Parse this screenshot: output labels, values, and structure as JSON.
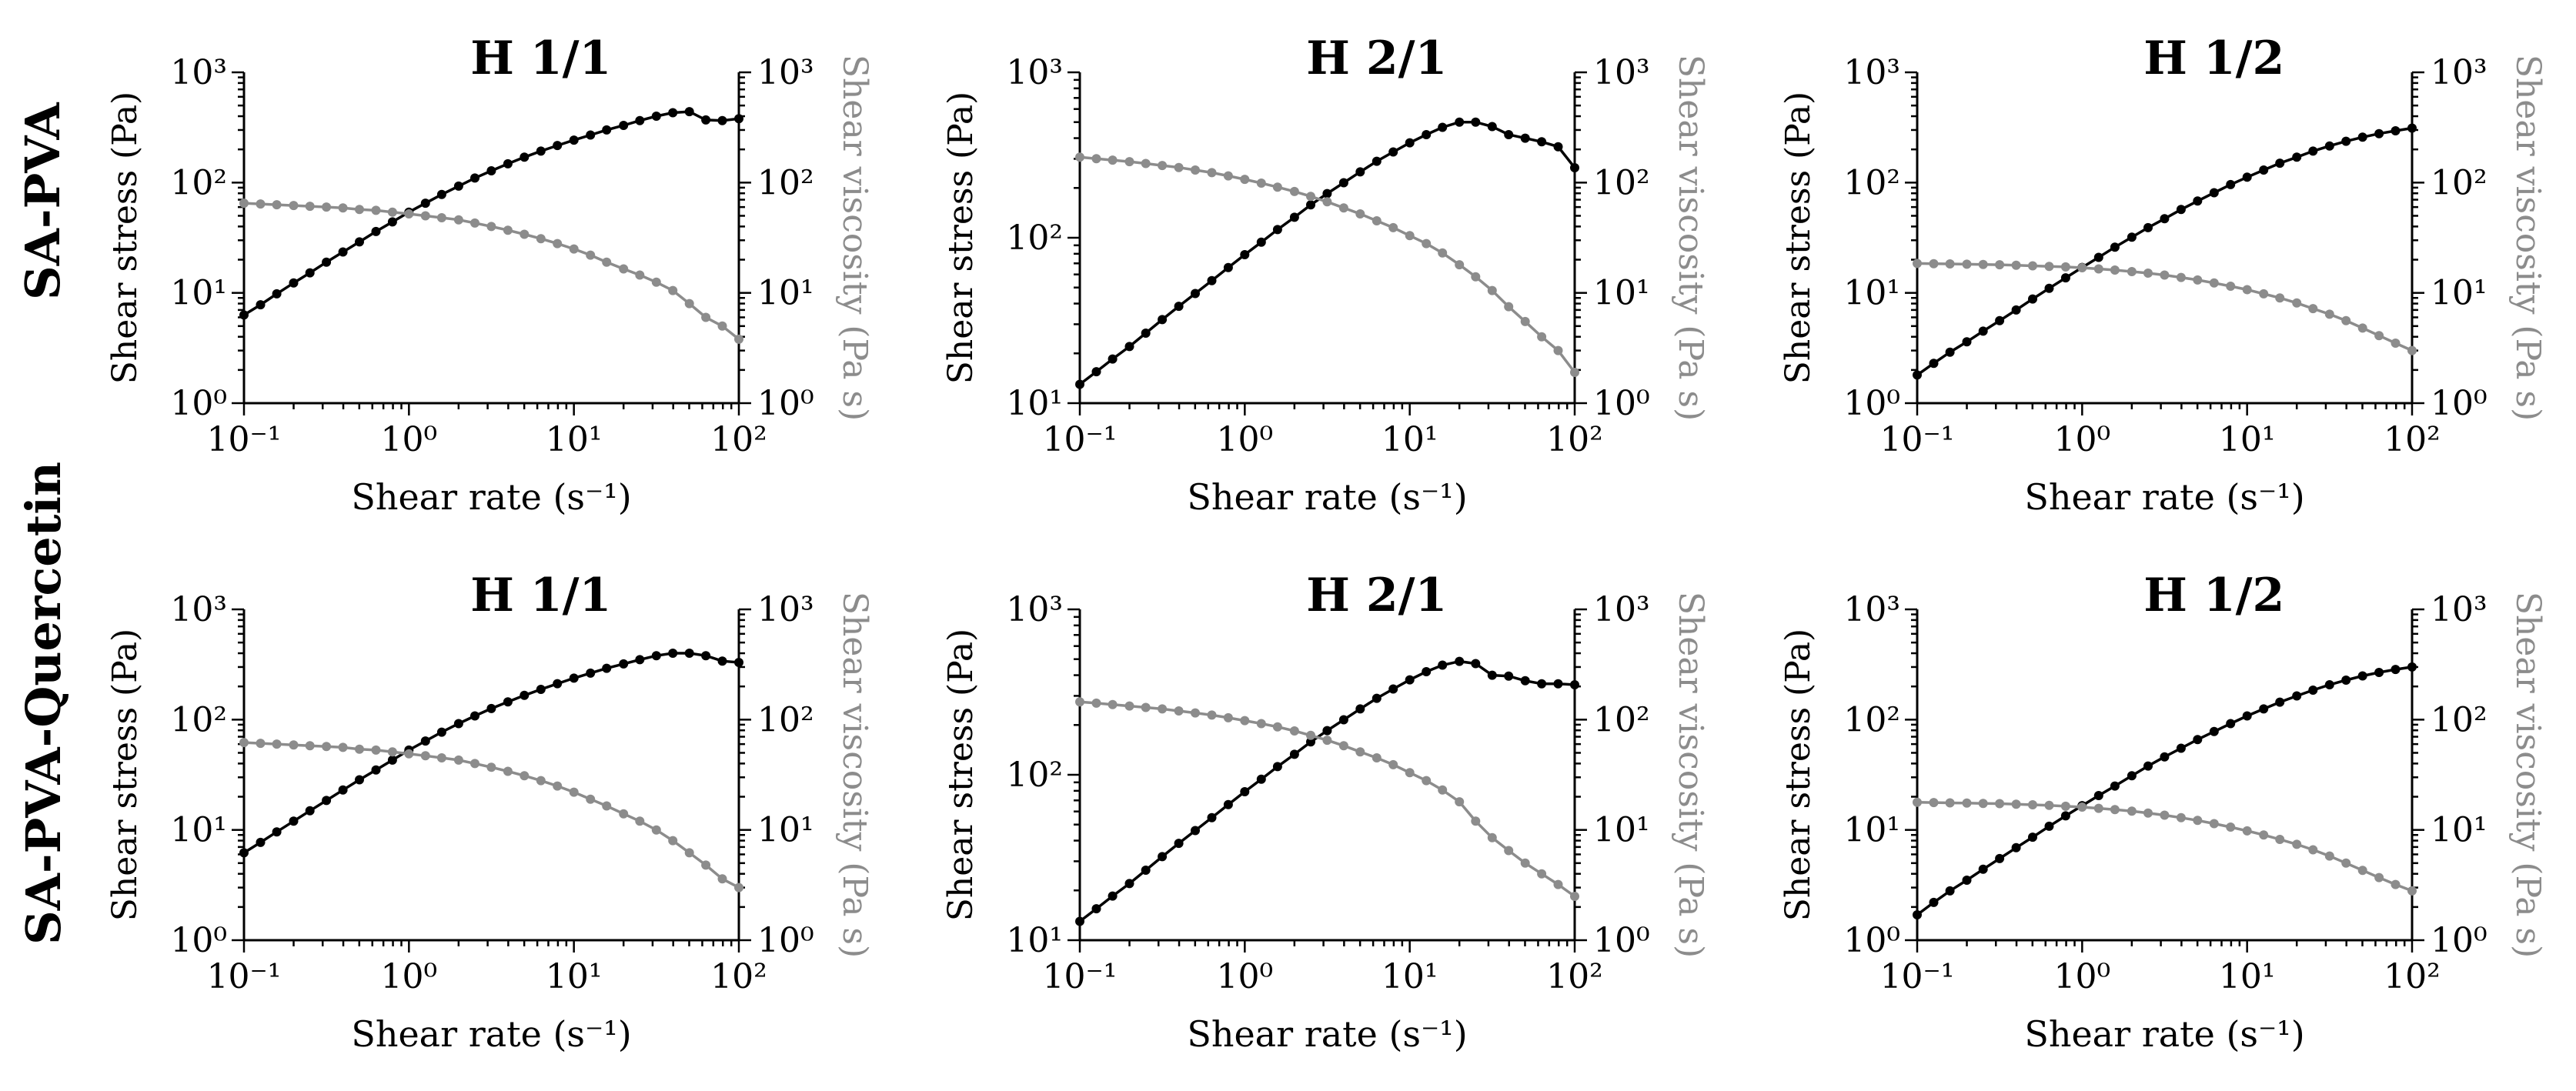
{
  "figure": {
    "row_labels": [
      "SA-PVA",
      "SA-PVA-Quercetin"
    ]
  },
  "colors": {
    "stress": "#000000",
    "viscosity": "#8c8c8c",
    "axis": "#000000"
  },
  "chart_data": [
    {
      "type": "line",
      "row": "SA-PVA",
      "title": "H 1/1",
      "xlabel": "Shear rate (s⁻¹)",
      "ylabel": "Shear stress (Pa)",
      "y2label": "Shear viscosity (Pa s)",
      "xscale": "log",
      "xlim": [
        0.1,
        100
      ],
      "xticks": [
        "10⁻¹",
        "10⁰",
        "10¹",
        "10²"
      ],
      "ylim": [
        1,
        1000
      ],
      "yticks": [
        "10⁰",
        "10¹",
        "10²",
        "10³"
      ],
      "y2lim": [
        1,
        1000
      ],
      "y2ticks": [
        "10⁰",
        "10¹",
        "10²",
        "10³"
      ],
      "series": [
        {
          "name": "Shear stress",
          "axis": "left",
          "color": "#000000",
          "x": [
            0.1,
            0.126,
            0.158,
            0.2,
            0.251,
            0.316,
            0.398,
            0.501,
            0.631,
            0.794,
            1.0,
            1.26,
            1.58,
            2.0,
            2.51,
            3.16,
            3.98,
            5.01,
            6.31,
            7.94,
            10.0,
            12.6,
            15.8,
            20.0,
            25.1,
            31.6,
            39.8,
            50.1,
            63.1,
            79.4,
            100.0
          ],
          "y": [
            6.3,
            7.8,
            9.8,
            12.3,
            15.2,
            19,
            23.5,
            29,
            36,
            44,
            54,
            65,
            78,
            93,
            110,
            128,
            148,
            170,
            193,
            217,
            243,
            270,
            300,
            330,
            365,
            400,
            430,
            440,
            370,
            365,
            380
          ]
        },
        {
          "name": "Shear viscosity",
          "axis": "right",
          "color": "#8c8c8c",
          "x": [
            0.1,
            0.126,
            0.158,
            0.2,
            0.251,
            0.316,
            0.398,
            0.501,
            0.631,
            0.794,
            1.0,
            1.26,
            1.58,
            2.0,
            2.51,
            3.16,
            3.98,
            5.01,
            6.31,
            7.94,
            10.0,
            12.6,
            15.8,
            20.0,
            25.1,
            31.6,
            39.8,
            50.1,
            63.1,
            79.4,
            100.0
          ],
          "y": [
            65,
            64,
            63,
            62,
            61,
            60,
            59,
            57,
            56,
            54,
            52,
            50,
            48,
            46,
            43,
            40,
            37,
            34,
            31,
            28,
            25,
            22,
            19,
            16.5,
            14.5,
            12.5,
            10.5,
            8,
            6,
            5,
            3.8
          ]
        }
      ]
    },
    {
      "type": "line",
      "row": "SA-PVA",
      "title": "H 2/1",
      "xlabel": "Shear rate (s⁻¹)",
      "ylabel": "Shear stress (Pa)",
      "y2label": "Shear viscosity (Pa s)",
      "xscale": "log",
      "xlim": [
        0.1,
        100
      ],
      "xticks": [
        "10⁻¹",
        "10⁰",
        "10¹",
        "10²"
      ],
      "ylim": [
        10,
        1000
      ],
      "yticks": [
        "10¹",
        "10²",
        "10³"
      ],
      "y2lim": [
        1,
        1000
      ],
      "y2ticks": [
        "10⁰",
        "10¹",
        "10²",
        "10³"
      ],
      "series": [
        {
          "name": "Shear stress",
          "axis": "left",
          "color": "#000000",
          "x": [
            0.1,
            0.126,
            0.158,
            0.2,
            0.251,
            0.316,
            0.398,
            0.501,
            0.631,
            0.794,
            1.0,
            1.26,
            1.58,
            2.0,
            2.51,
            3.16,
            3.98,
            5.01,
            6.31,
            7.94,
            10.0,
            12.6,
            15.8,
            20.0,
            25.1,
            31.6,
            39.8,
            50.1,
            63.1,
            79.4,
            100.0
          ],
          "y": [
            13,
            15.5,
            18.5,
            22,
            26.5,
            32,
            38.5,
            46,
            55,
            66,
            79,
            94,
            112,
            133,
            158,
            185,
            215,
            250,
            290,
            330,
            375,
            420,
            465,
            500,
            500,
            470,
            420,
            400,
            380,
            355,
            265
          ]
        },
        {
          "name": "Shear viscosity",
          "axis": "right",
          "color": "#8c8c8c",
          "x": [
            0.1,
            0.126,
            0.158,
            0.2,
            0.251,
            0.316,
            0.398,
            0.501,
            0.631,
            0.794,
            1.0,
            1.26,
            1.58,
            2.0,
            2.51,
            3.16,
            3.98,
            5.01,
            6.31,
            7.94,
            10.0,
            12.6,
            15.8,
            20.0,
            25.1,
            31.6,
            39.8,
            50.1,
            63.1,
            79.4,
            100.0
          ],
          "y": [
            170,
            165,
            160,
            155,
            149,
            143,
            137,
            130,
            123,
            115,
            107,
            99,
            91,
            83,
            75,
            67,
            59,
            52,
            45,
            39,
            33,
            28,
            23,
            18,
            14,
            10.5,
            7.5,
            5.5,
            4,
            3,
            1.9
          ]
        }
      ]
    },
    {
      "type": "line",
      "row": "SA-PVA",
      "title": "H 1/2",
      "xlabel": "Shear rate (s⁻¹)",
      "ylabel": "Shear stress (Pa)",
      "y2label": "Shear viscosity (Pa s)",
      "xscale": "log",
      "xlim": [
        0.1,
        100
      ],
      "xticks": [
        "10⁻¹",
        "10⁰",
        "10¹",
        "10²"
      ],
      "ylim": [
        1,
        1000
      ],
      "yticks": [
        "10⁰",
        "10¹",
        "10²",
        "10³"
      ],
      "y2lim": [
        1,
        1000
      ],
      "y2ticks": [
        "10⁰",
        "10¹",
        "10²",
        "10³"
      ],
      "series": [
        {
          "name": "Shear stress",
          "axis": "left",
          "color": "#000000",
          "x": [
            0.1,
            0.126,
            0.158,
            0.2,
            0.251,
            0.316,
            0.398,
            0.501,
            0.631,
            0.794,
            1.0,
            1.26,
            1.58,
            2.0,
            2.51,
            3.16,
            3.98,
            5.01,
            6.31,
            7.94,
            10.0,
            12.6,
            15.8,
            20.0,
            25.1,
            31.6,
            39.8,
            50.1,
            63.1,
            79.4,
            100.0
          ],
          "y": [
            1.8,
            2.3,
            2.9,
            3.6,
            4.5,
            5.6,
            7,
            8.8,
            11,
            13.7,
            17,
            21,
            26,
            32,
            39,
            47,
            57,
            68,
            81,
            96,
            112,
            130,
            150,
            170,
            193,
            215,
            237,
            258,
            278,
            295,
            312
          ]
        },
        {
          "name": "Shear viscosity",
          "axis": "right",
          "color": "#8c8c8c",
          "x": [
            0.1,
            0.126,
            0.158,
            0.2,
            0.251,
            0.316,
            0.398,
            0.501,
            0.631,
            0.794,
            1.0,
            1.26,
            1.58,
            2.0,
            2.51,
            3.16,
            3.98,
            5.01,
            6.31,
            7.94,
            10.0,
            12.6,
            15.8,
            20.0,
            25.1,
            31.6,
            39.8,
            50.1,
            63.1,
            79.4,
            100.0
          ],
          "y": [
            18.5,
            18.4,
            18.3,
            18.2,
            18.1,
            18,
            17.8,
            17.6,
            17.4,
            17.2,
            16.9,
            16.5,
            16.1,
            15.6,
            15.1,
            14.5,
            13.8,
            13.1,
            12.3,
            11.5,
            10.7,
            9.8,
            9,
            8.1,
            7.2,
            6.4,
            5.6,
            4.8,
            4.1,
            3.5,
            3
          ]
        }
      ]
    },
    {
      "type": "line",
      "row": "SA-PVA-Quercetin",
      "title": "H 1/1",
      "xlabel": "Shear rate (s⁻¹)",
      "ylabel": "Shear stress (Pa)",
      "y2label": "Shear viscosity (Pa s)",
      "xscale": "log",
      "xlim": [
        0.1,
        100
      ],
      "xticks": [
        "10⁻¹",
        "10⁰",
        "10¹",
        "10²"
      ],
      "ylim": [
        1,
        1000
      ],
      "yticks": [
        "10⁰",
        "10¹",
        "10²",
        "10³"
      ],
      "y2lim": [
        1,
        1000
      ],
      "y2ticks": [
        "10⁰",
        "10¹",
        "10²",
        "10³"
      ],
      "series": [
        {
          "name": "Shear stress",
          "axis": "left",
          "color": "#000000",
          "x": [
            0.1,
            0.126,
            0.158,
            0.2,
            0.251,
            0.316,
            0.398,
            0.501,
            0.631,
            0.794,
            1.0,
            1.26,
            1.58,
            2.0,
            2.51,
            3.16,
            3.98,
            5.01,
            6.31,
            7.94,
            10.0,
            12.6,
            15.8,
            20.0,
            25.1,
            31.6,
            39.8,
            50.1,
            63.1,
            79.4,
            100.0
          ],
          "y": [
            6.2,
            7.7,
            9.6,
            12,
            14.9,
            18.5,
            23,
            28.5,
            35,
            43,
            53,
            64,
            77,
            92,
            108,
            126,
            145,
            166,
            188,
            212,
            238,
            264,
            292,
            320,
            350,
            380,
            400,
            400,
            380,
            340,
            330
          ]
        },
        {
          "name": "Shear viscosity",
          "axis": "right",
          "color": "#8c8c8c",
          "x": [
            0.1,
            0.126,
            0.158,
            0.2,
            0.251,
            0.316,
            0.398,
            0.501,
            0.631,
            0.794,
            1.0,
            1.26,
            1.58,
            2.0,
            2.51,
            3.16,
            3.98,
            5.01,
            6.31,
            7.94,
            10.0,
            12.6,
            15.8,
            20.0,
            25.1,
            31.6,
            39.8,
            50.1,
            63.1,
            79.4,
            100.0
          ],
          "y": [
            62,
            61,
            60,
            59,
            58,
            57,
            56,
            54,
            53,
            51,
            49,
            47,
            45,
            43,
            40,
            37,
            34,
            31,
            28,
            25,
            22,
            19,
            16.5,
            14,
            12,
            10,
            8,
            6.2,
            4.8,
            3.6,
            3
          ]
        }
      ]
    },
    {
      "type": "line",
      "row": "SA-PVA-Quercetin",
      "title": "H 2/1",
      "xlabel": "Shear rate (s⁻¹)",
      "ylabel": "Shear stress (Pa)",
      "y2label": "Shear viscosity (Pa s)",
      "xscale": "log",
      "xlim": [
        0.1,
        100
      ],
      "xticks": [
        "10⁻¹",
        "10⁰",
        "10¹",
        "10²"
      ],
      "ylim": [
        10,
        1000
      ],
      "yticks": [
        "10¹",
        "10²",
        "10³"
      ],
      "y2lim": [
        1,
        1000
      ],
      "y2ticks": [
        "10⁰",
        "10¹",
        "10²",
        "10³"
      ],
      "series": [
        {
          "name": "Shear stress",
          "axis": "left",
          "color": "#000000",
          "x": [
            0.1,
            0.126,
            0.158,
            0.2,
            0.251,
            0.316,
            0.398,
            0.501,
            0.631,
            0.794,
            1.0,
            1.26,
            1.58,
            2.0,
            2.51,
            3.16,
            3.98,
            5.01,
            6.31,
            7.94,
            10.0,
            12.6,
            15.8,
            20.0,
            25.1,
            31.6,
            39.8,
            50.1,
            63.1,
            79.4,
            100.0
          ],
          "y": [
            13,
            15.5,
            18.5,
            22,
            26.5,
            32,
            38.5,
            46,
            55,
            66,
            79,
            94,
            112,
            133,
            158,
            185,
            215,
            250,
            290,
            330,
            375,
            420,
            460,
            485,
            470,
            400,
            395,
            370,
            355,
            355,
            350
          ]
        },
        {
          "name": "Shear viscosity",
          "axis": "right",
          "color": "#8c8c8c",
          "x": [
            0.1,
            0.126,
            0.158,
            0.2,
            0.251,
            0.316,
            0.398,
            0.501,
            0.631,
            0.794,
            1.0,
            1.26,
            1.58,
            2.0,
            2.51,
            3.16,
            3.98,
            5.01,
            6.31,
            7.94,
            10.0,
            12.6,
            15.8,
            20.0,
            25.1,
            31.6,
            39.8,
            50.1,
            63.1,
            79.4,
            100.0
          ],
          "y": [
            145,
            141,
            137,
            133,
            129,
            125,
            120,
            115,
            110,
            104,
            98,
            92,
            86,
            79,
            72,
            65,
            58,
            51,
            45,
            39,
            33,
            28,
            23,
            18,
            12,
            8.5,
            6.5,
            5,
            4,
            3.2,
            2.5
          ]
        }
      ]
    },
    {
      "type": "line",
      "row": "SA-PVA-Quercetin",
      "title": "H 1/2",
      "xlabel": "Shear rate (s⁻¹)",
      "ylabel": "Shear stress (Pa)",
      "y2label": "Shear viscosity (Pa s)",
      "xscale": "log",
      "xlim": [
        0.1,
        100
      ],
      "xticks": [
        "10⁻¹",
        "10⁰",
        "10¹",
        "10²"
      ],
      "ylim": [
        1,
        1000
      ],
      "yticks": [
        "10⁰",
        "10¹",
        "10²",
        "10³"
      ],
      "y2lim": [
        1,
        1000
      ],
      "y2ticks": [
        "10⁰",
        "10¹",
        "10²",
        "10³"
      ],
      "series": [
        {
          "name": "Shear stress",
          "axis": "left",
          "color": "#000000",
          "x": [
            0.1,
            0.126,
            0.158,
            0.2,
            0.251,
            0.316,
            0.398,
            0.501,
            0.631,
            0.794,
            1.0,
            1.26,
            1.58,
            2.0,
            2.51,
            3.16,
            3.98,
            5.01,
            6.31,
            7.94,
            10.0,
            12.6,
            15.8,
            20.0,
            25.1,
            31.6,
            39.8,
            50.1,
            63.1,
            79.4,
            100.0
          ],
          "y": [
            1.7,
            2.2,
            2.8,
            3.5,
            4.4,
            5.5,
            6.9,
            8.6,
            10.8,
            13.4,
            16.6,
            20.5,
            25,
            31,
            38,
            46,
            55,
            66,
            78,
            92,
            108,
            125,
            144,
            164,
            185,
            207,
            228,
            249,
            268,
            285,
            300
          ]
        },
        {
          "name": "Shear viscosity",
          "axis": "right",
          "color": "#8c8c8c",
          "x": [
            0.1,
            0.126,
            0.158,
            0.2,
            0.251,
            0.316,
            0.398,
            0.501,
            0.631,
            0.794,
            1.0,
            1.26,
            1.58,
            2.0,
            2.51,
            3.16,
            3.98,
            5.01,
            6.31,
            7.94,
            10.0,
            12.6,
            15.8,
            20.0,
            25.1,
            31.6,
            39.8,
            50.1,
            63.1,
            79.4,
            100.0
          ],
          "y": [
            17.8,
            17.7,
            17.6,
            17.5,
            17.4,
            17.3,
            17.1,
            16.9,
            16.7,
            16.4,
            16.1,
            15.7,
            15.3,
            14.8,
            14.2,
            13.6,
            12.9,
            12.2,
            11.4,
            10.6,
            9.8,
            9,
            8.2,
            7.4,
            6.6,
            5.8,
            5,
            4.3,
            3.7,
            3.2,
            2.8
          ]
        }
      ]
    }
  ]
}
